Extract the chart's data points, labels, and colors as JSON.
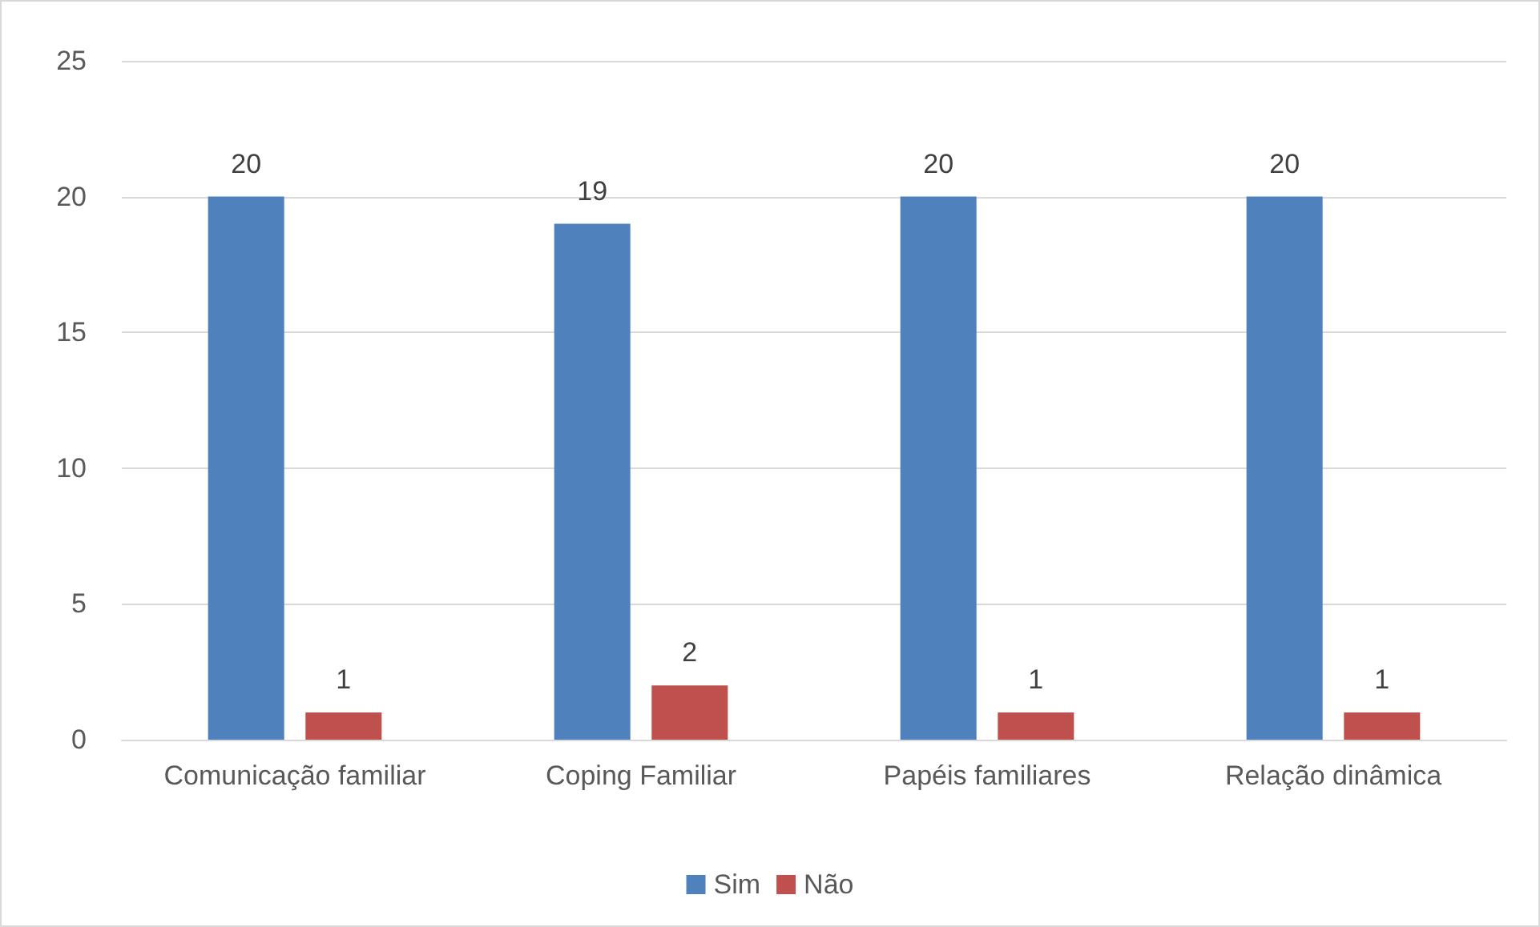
{
  "chart_data": {
    "type": "bar",
    "categories": [
      "Comunicação familiar",
      "Coping Familiar",
      "Papéis familiares",
      "Relação dinâmica"
    ],
    "series": [
      {
        "name": "Sim",
        "color": "#4f81bd",
        "values": [
          20,
          19,
          20,
          20
        ]
      },
      {
        "name": "Não",
        "color": "#c0504d",
        "values": [
          1,
          2,
          1,
          1
        ]
      }
    ],
    "ylim": [
      0,
      25
    ],
    "yticks": [
      0,
      5,
      10,
      15,
      20,
      25
    ],
    "grid": "y",
    "legend": "bottom",
    "data_labels": true
  }
}
